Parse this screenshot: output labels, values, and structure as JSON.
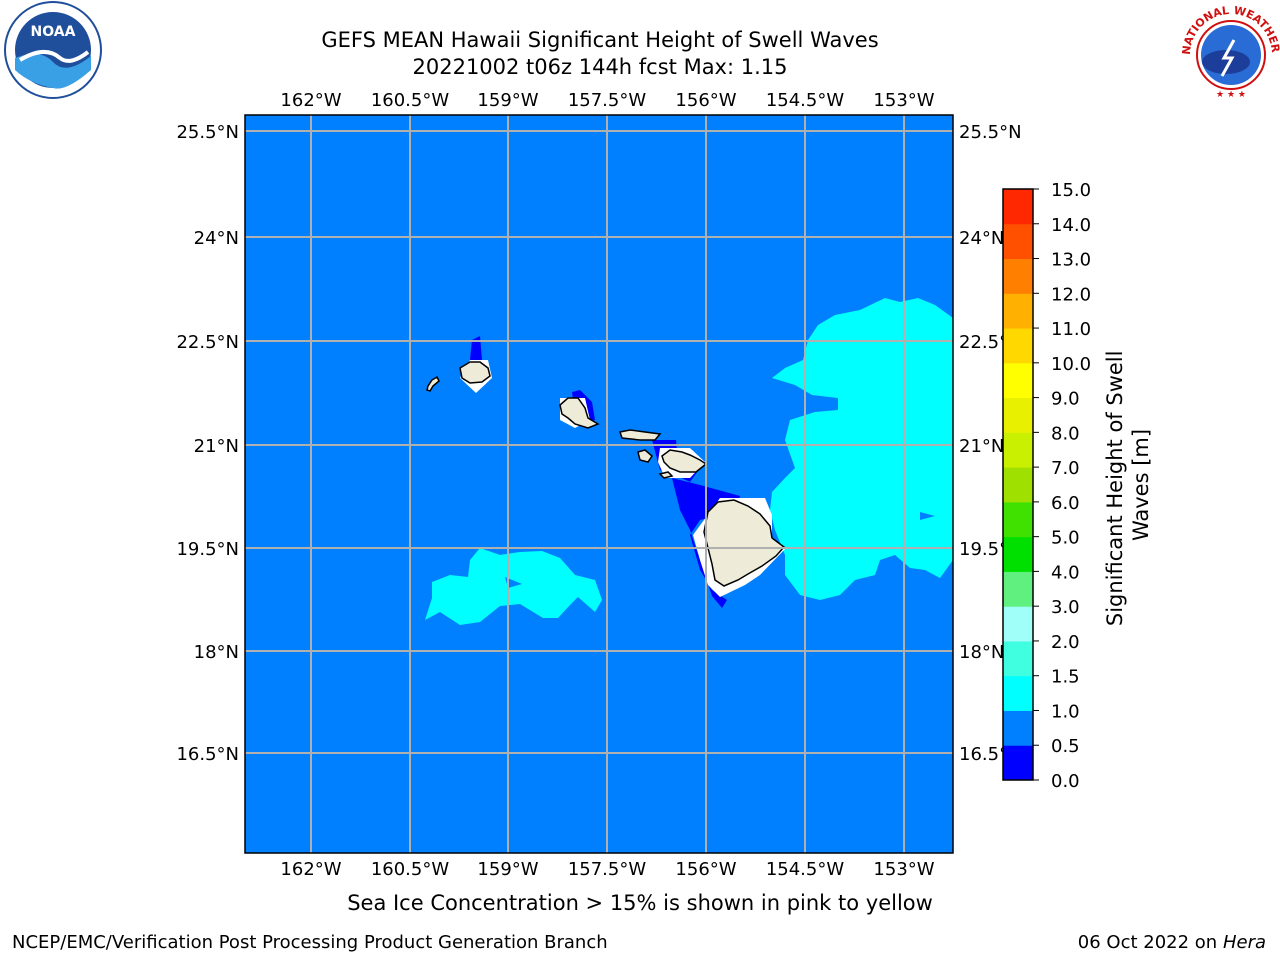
{
  "header": {
    "title_line1": "GEFS MEAN Hawaii Significant Height of Swell Waves",
    "title_line2": "20221002 t06z 144h fcst   Max: 1.15"
  },
  "map": {
    "lon_labels": [
      "162°W",
      "160.5°W",
      "159°W",
      "157.5°W",
      "156°W",
      "154.5°W",
      "153°W"
    ],
    "lat_labels": [
      "25.5°N",
      "24°N",
      "22.5°N",
      "21°N",
      "19.5°N",
      "18°N",
      "16.5°N"
    ],
    "ocean_color": "#0080ff",
    "land_color": "#eeebd9"
  },
  "colorbar": {
    "label_line1": "Significant Height of Swell",
    "label_line2": "Waves [m]",
    "ticks": [
      "0.0",
      "0.5",
      "1.0",
      "1.5",
      "2.0",
      "3.0",
      "4.0",
      "5.0",
      "6.0",
      "7.0",
      "8.0",
      "9.0",
      "10.0",
      "11.0",
      "12.0",
      "13.0",
      "14.0",
      "15.0"
    ],
    "colors": [
      "#0000ff",
      "#0080ff",
      "#00ffff",
      "#40ffe0",
      "#a0fff8",
      "#60f080",
      "#00e000",
      "#40e000",
      "#a0e000",
      "#c8f000",
      "#e8f000",
      "#ffff00",
      "#ffd800",
      "#ffb000",
      "#ff8000",
      "#ff5000",
      "#ff2800",
      "#ff0000"
    ]
  },
  "note": "Sea Ice Concentration > 15% is shown in pink to yellow",
  "footer": {
    "left": "NCEP/EMC/Verification Post Processing Product Generation Branch",
    "right_date": "06 Oct 2022 on",
    "right_machine": "Hera"
  },
  "logos": {
    "noaa_text": "NOAA",
    "nws_text": "NATIONAL WEATHER SERVICE"
  }
}
